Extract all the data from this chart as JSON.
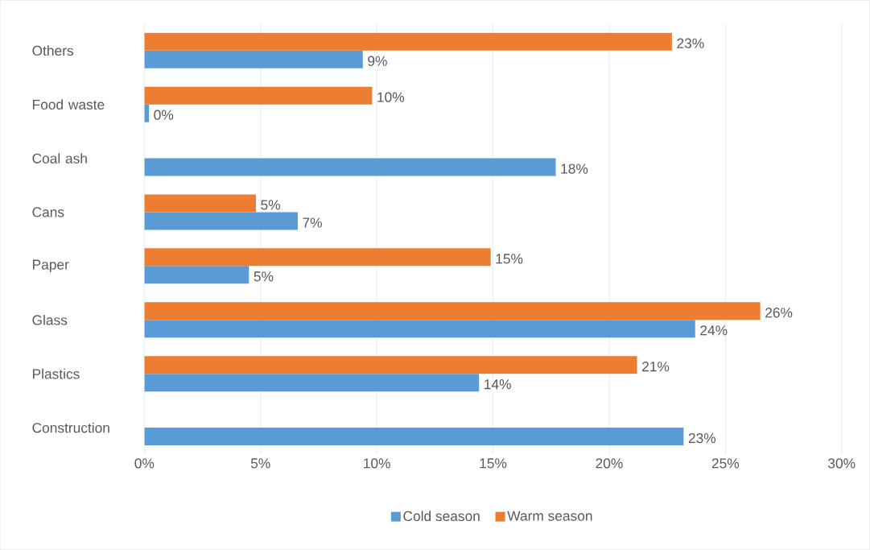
{
  "chart_data": {
    "type": "bar",
    "orientation": "horizontal",
    "categories": [
      "Others",
      "Food waste",
      "Coal ash",
      "Cans",
      "Paper",
      "Glass",
      "Plastics",
      "Construction"
    ],
    "series": [
      {
        "name": "Cold season",
        "color": "#5b9bd5",
        "values": [
          9.4,
          0.2,
          17.7,
          6.6,
          4.5,
          23.7,
          14.4,
          23.2
        ],
        "value_labels": [
          "9%",
          "0%",
          "18%",
          "7%",
          "5%",
          "24%",
          "14%",
          "23%"
        ]
      },
      {
        "name": "Warm season",
        "color": "#ed7d31",
        "values": [
          22.7,
          9.8,
          null,
          4.8,
          14.9,
          26.5,
          21.2,
          null
        ],
        "value_labels": [
          "23%",
          "10%",
          null,
          "5%",
          "15%",
          "26%",
          "21%",
          null
        ]
      }
    ],
    "xlim": [
      0,
      30
    ],
    "xticks": [
      {
        "value": 0,
        "label": "0%"
      },
      {
        "value": 5,
        "label": "5%"
      },
      {
        "value": 10,
        "label": "10%"
      },
      {
        "value": 15,
        "label": "15%"
      },
      {
        "value": 20,
        "label": "20%"
      },
      {
        "value": 25,
        "label": "25%"
      },
      {
        "value": 30,
        "label": "30%"
      }
    ],
    "grid": "x",
    "legend": "bottom"
  }
}
